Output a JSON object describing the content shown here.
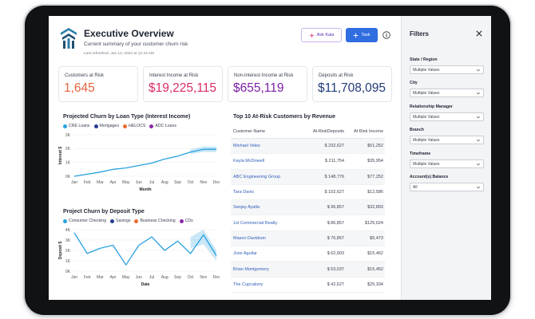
{
  "header": {
    "title": "Executive Overview",
    "subtitle": "Current summary of your customer churn risk",
    "last_refreshed": "Last refreshed: Jun 12, 2024 at 12:44 AM",
    "ask_label": "Ask Kaia",
    "task_label": "Task"
  },
  "kpis": [
    {
      "label": "Customers at Risk",
      "value": "1,645",
      "color": "#e8623d"
    },
    {
      "label": "Interest Income at Risk",
      "value": "$19,225,115",
      "color": "#d92a68"
    },
    {
      "label": "Non-Interest Income at Risk",
      "value": "$655,119",
      "color": "#7a1fa8"
    },
    {
      "label": "Deposits at Risk",
      "value": "$11,708,095",
      "color": "#213a7a"
    }
  ],
  "chart1": {
    "title": "Projected Churn by Loan Type (Interest Income)",
    "legend": [
      {
        "name": "CRE Loans",
        "color": "#27a1e0"
      },
      {
        "name": "Mortgages",
        "color": "#233a8c"
      },
      {
        "name": "HELOCS",
        "color": "#ec6b2d"
      },
      {
        "name": "ADC Loans",
        "color": "#8a2aa8"
      }
    ],
    "ylabel": "Interest $",
    "xlabel": "Month",
    "ytick_labels": [
      "3K",
      "2K",
      "1K",
      "0K"
    ],
    "xtick_labels": [
      "Jan",
      "Feb",
      "Mar",
      "Apr",
      "May",
      "Jun",
      "Jul",
      "Aug",
      "Sep",
      "Oct",
      "Nov",
      "Dec"
    ]
  },
  "chart2": {
    "title": "Project Churn by Deposit Type",
    "legend": [
      {
        "name": "Consumer Checking",
        "color": "#27a1e0"
      },
      {
        "name": "Savings",
        "color": "#233a8c"
      },
      {
        "name": "Business Checking",
        "color": "#ec6b2d"
      },
      {
        "name": "CDs",
        "color": "#8a2aa8"
      }
    ],
    "ylabel": "Deposit $",
    "xlabel": "Date",
    "ytick_labels": [
      "4K",
      "3K",
      "2K",
      "1K",
      "0K"
    ],
    "xtick_labels": [
      "Jan",
      "Feb",
      "Mar",
      "Apr",
      "May",
      "Jun",
      "Jul",
      "Aug",
      "Sep",
      "Oct",
      "Nov",
      "Dec"
    ]
  },
  "chart_data": [
    {
      "type": "line",
      "title": "Projected Churn by Loan Type (Interest Income)",
      "xlabel": "Month",
      "ylabel": "Interest $",
      "categories": [
        "Jan",
        "Feb",
        "Mar",
        "Apr",
        "May",
        "Jun",
        "Jul",
        "Aug",
        "Sep",
        "Oct",
        "Nov",
        "Dec"
      ],
      "ylim": [
        0,
        3000
      ],
      "series": [
        {
          "name": "CRE Loans",
          "values": [
            0,
            150,
            300,
            500,
            600,
            780,
            950,
            1250,
            1450,
            1750,
            1950,
            1950
          ]
        }
      ],
      "forecast_band": {
        "from": "Oct",
        "to": "Dec",
        "lower": [
          1600,
          1750,
          1750
        ],
        "upper": [
          1950,
          2150,
          2150
        ]
      },
      "grid": true,
      "legend": "top-left"
    },
    {
      "type": "line",
      "title": "Project Churn by Deposit Type",
      "xlabel": "Date",
      "ylabel": "Deposit $",
      "categories": [
        "Jan",
        "Feb",
        "Mar",
        "Apr",
        "May",
        "Jun",
        "Jul",
        "Aug",
        "Sep",
        "Oct",
        "Nov",
        "Dec"
      ],
      "ylim": [
        0,
        4000
      ],
      "series": [
        {
          "name": "Consumer Checking",
          "values": [
            3700,
            1700,
            2200,
            2500,
            600,
            2500,
            3300,
            2000,
            2900,
            1700,
            3500,
            1500
          ]
        }
      ],
      "forecast_band": {
        "from": "Oct",
        "to": "Dec",
        "lower": [
          2200,
          2600,
          1000
        ],
        "upper": [
          3300,
          4000,
          2000
        ]
      },
      "grid": true,
      "legend": "top-left"
    }
  ],
  "table": {
    "title": "Top 10 At-Risk Customers by Revenue",
    "columns": [
      "Customer Name",
      "At-RiskDeposits",
      "At Risk Income"
    ],
    "rows": [
      [
        "Michael Velez",
        "$ 232,627",
        "$51,252"
      ],
      [
        "Kayla McDowell",
        "$ 211,754",
        "$35,954"
      ],
      [
        "ABC Engineering Group",
        "$ 148,776",
        "$77,252"
      ],
      [
        "Tara Davis",
        "$ 102,627",
        "$12,586"
      ],
      [
        "Sanjay Ayalla",
        "$ 96,857",
        "$32,893"
      ],
      [
        "1st Commercial Realty",
        "$ 86,857",
        "$125,024"
      ],
      [
        "Mason Davidson",
        "$ 76,857",
        "$5,473"
      ],
      [
        "Jose Aguilar",
        "$ 62,903",
        "$15,462"
      ],
      [
        "Brian Montgomery",
        "$ 53,037",
        "$15,452"
      ],
      [
        "The Cupcakery",
        "$ 42,627",
        "$25,334"
      ]
    ]
  },
  "filters": {
    "title": "Filters",
    "groups": [
      {
        "label": "State / Region",
        "value": "Multiple Values"
      },
      {
        "label": "City",
        "value": "Multiple Values"
      },
      {
        "label": "Relationship Manager",
        "value": "Multiple Values"
      },
      {
        "label": "Branch",
        "value": "Multiple Values"
      },
      {
        "label": "Timeframe",
        "value": "Multiple Values"
      },
      {
        "label": "Account(s) Balance",
        "value": "All"
      }
    ]
  }
}
